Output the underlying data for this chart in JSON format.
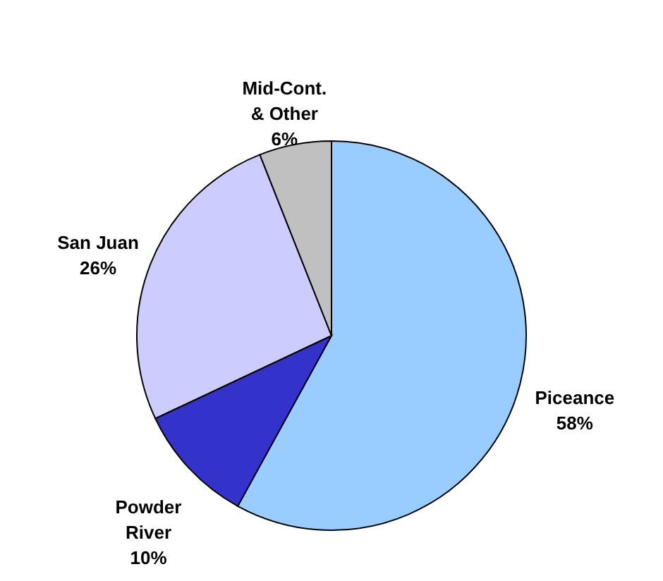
{
  "chart_data": {
    "type": "pie",
    "categories": [
      "Piceance",
      "Powder\nRiver",
      "San Juan",
      "Mid-Cont.\n& Other"
    ],
    "values": [
      58,
      10,
      26,
      6
    ],
    "value_labels": [
      "58%",
      "10%",
      "26%",
      "6%"
    ],
    "colors": [
      "#99ccff",
      "#3333cc",
      "#ccccff",
      "#c0c0c0"
    ]
  }
}
